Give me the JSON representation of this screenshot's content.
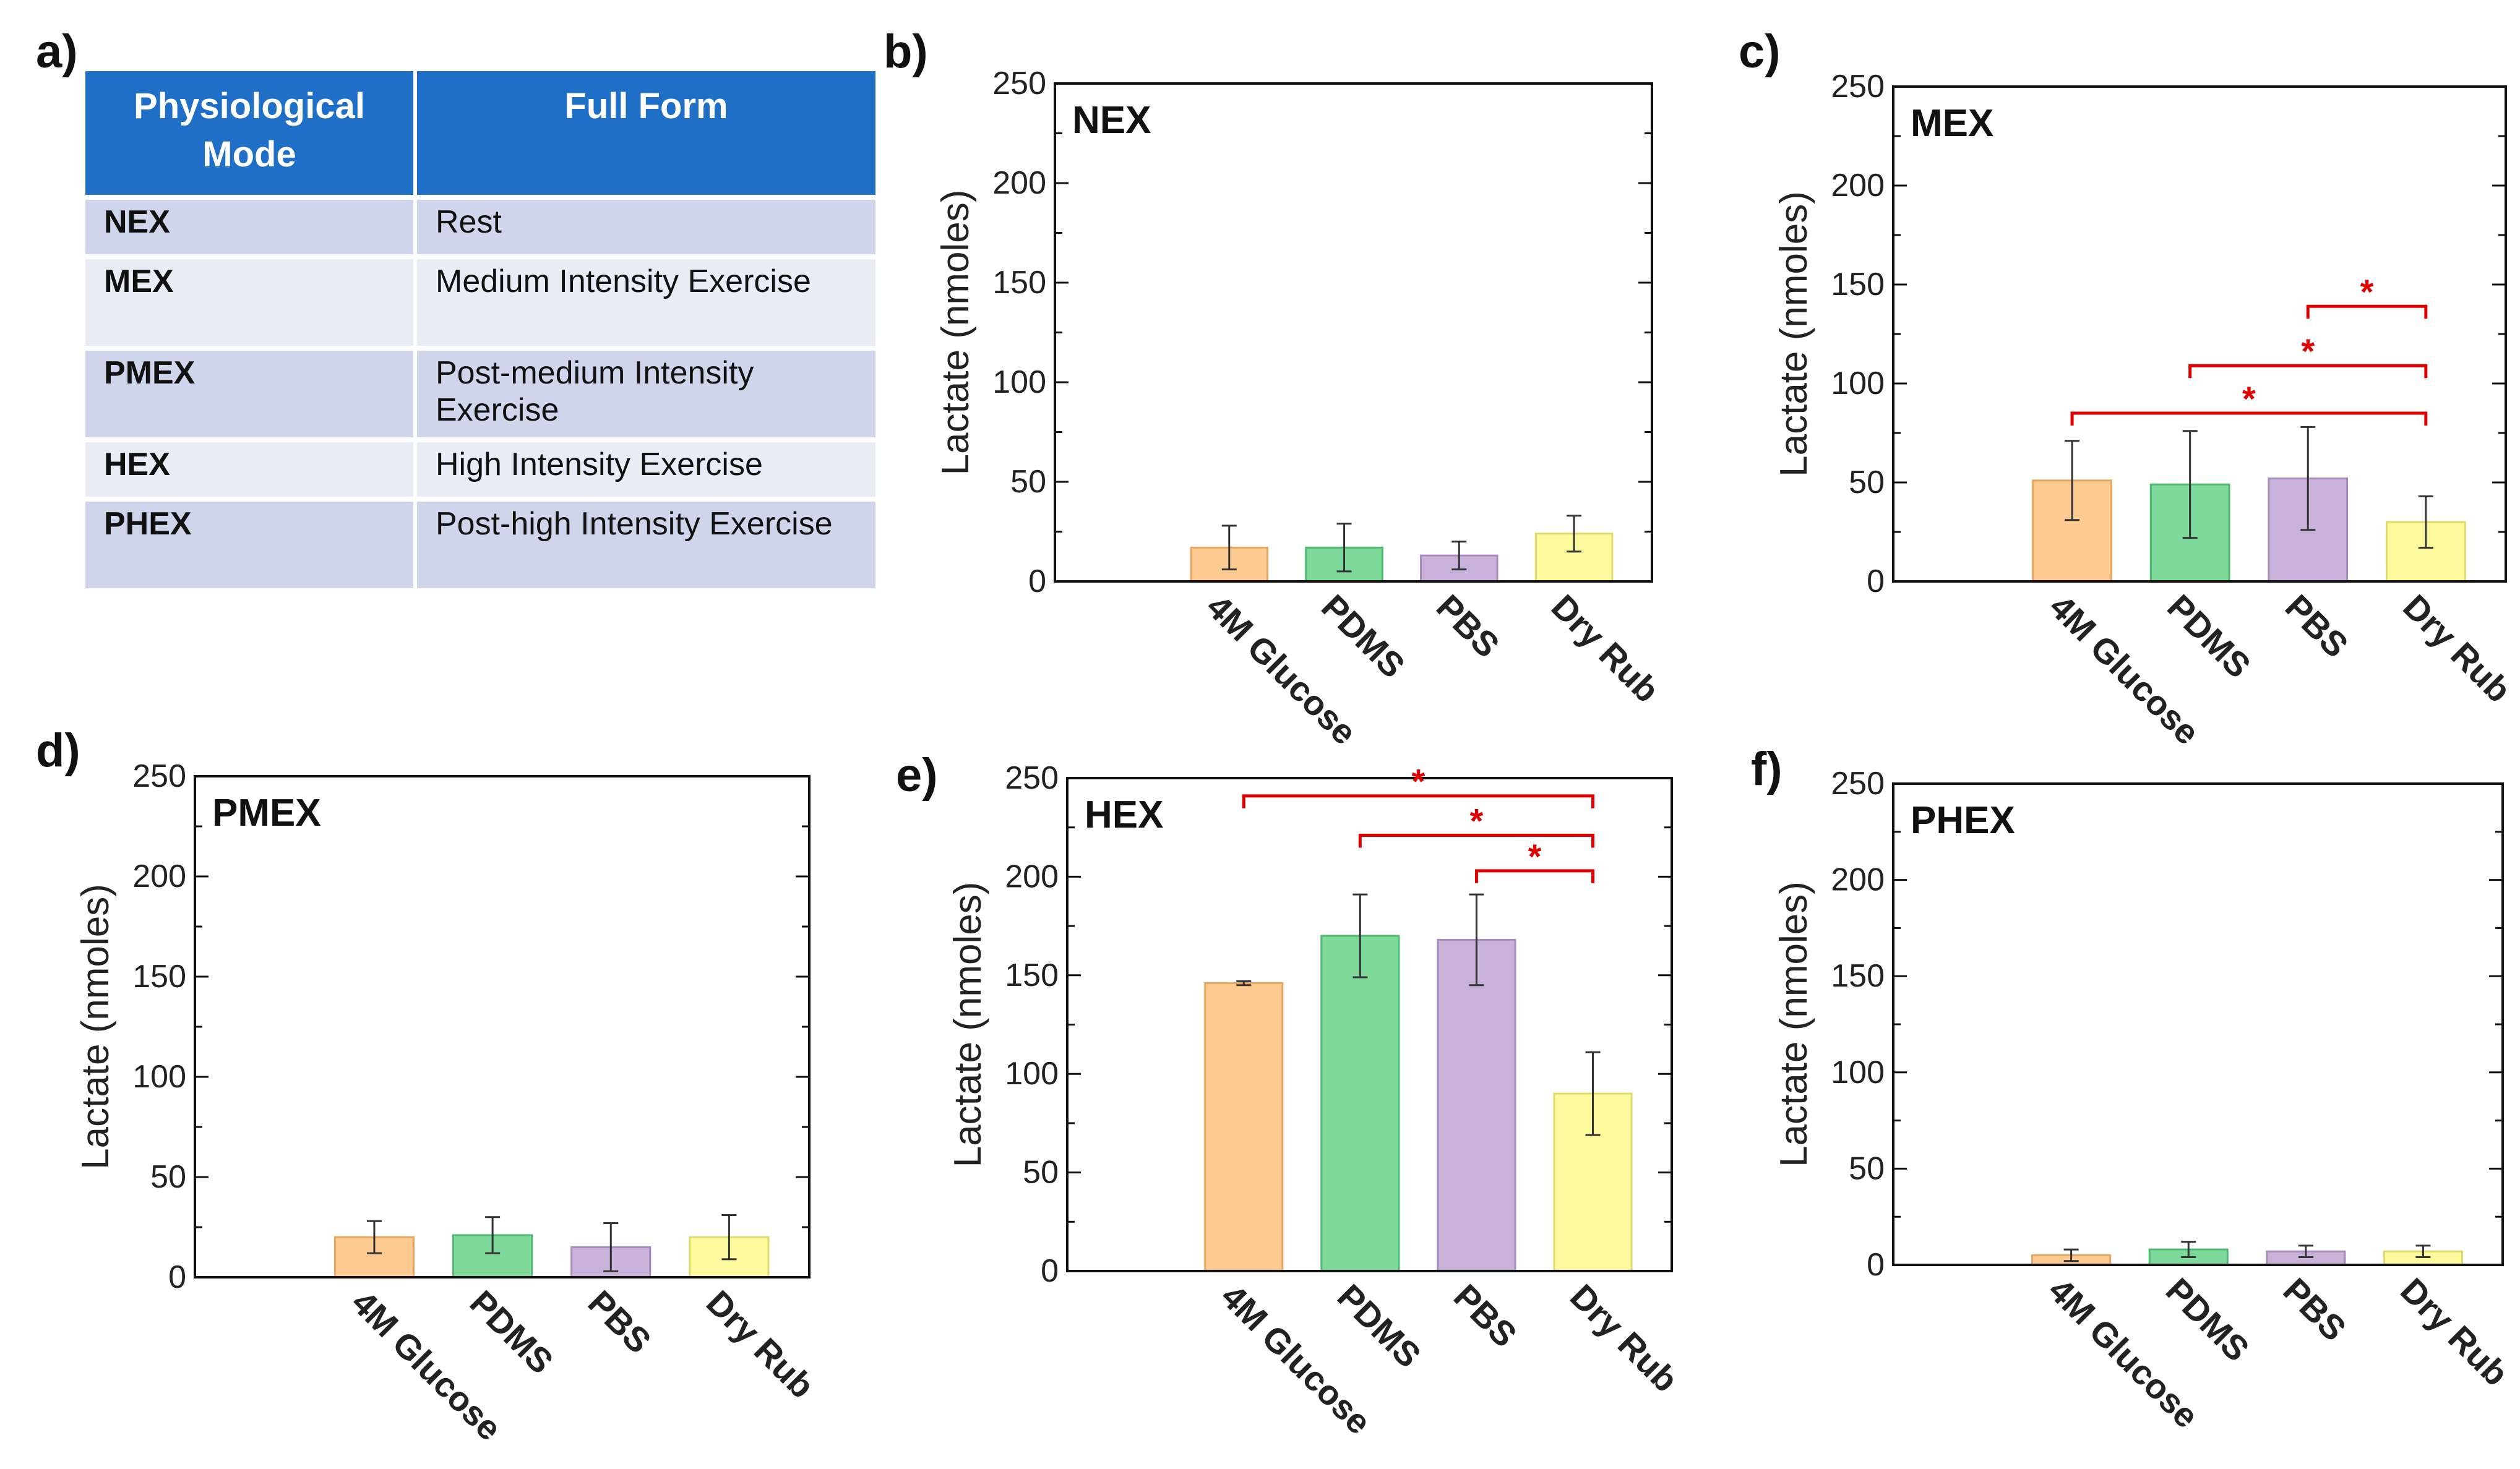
{
  "panel_labels": [
    "a)",
    "b)",
    "c)",
    "d)",
    "e)",
    "f)"
  ],
  "table": {
    "headers": [
      "Physiological Mode",
      "Full Form"
    ],
    "rows": [
      [
        "NEX",
        "Rest"
      ],
      [
        "MEX",
        "Medium Intensity Exercise"
      ],
      [
        "PMEX",
        "Post-medium Intensity Exercise"
      ],
      [
        "HEX",
        "High Intensity Exercise"
      ],
      [
        "PHEX",
        "Post-high Intensity Exercise"
      ]
    ]
  },
  "colors": {
    "fills": [
      "#fdcb92",
      "#7fd99a",
      "#c8b2d9",
      "#fdfa9e"
    ],
    "strokes": [
      "#e8a560",
      "#4fb86f",
      "#a68bbd",
      "#dedb6a"
    ],
    "significance": "#e00000",
    "header": "#1f6fc7"
  },
  "chart_data": [
    {
      "type": "bar",
      "panel": "b)",
      "title": "NEX",
      "categories": [
        "4M Glucose",
        "PDMS",
        "PBS",
        "Dry Rub"
      ],
      "values": [
        17,
        17,
        13,
        24
      ],
      "errors": [
        11,
        12,
        7,
        9
      ],
      "ylabel": "Lactate (nmoles)",
      "ylim": [
        0,
        250
      ],
      "yticks": [
        "0",
        "50",
        "100",
        "150",
        "200",
        "250"
      ],
      "significance": []
    },
    {
      "type": "bar",
      "panel": "c)",
      "title": "MEX",
      "categories": [
        "4M Glucose",
        "PDMS",
        "PBS",
        "Dry Rub"
      ],
      "values": [
        51,
        49,
        52,
        30
      ],
      "errors": [
        20,
        27,
        26,
        13
      ],
      "ylabel": "Lactate (nmoles)",
      "ylim": [
        0,
        250
      ],
      "yticks": [
        "0",
        "50",
        "100",
        "150",
        "200",
        "250"
      ],
      "significance": [
        {
          "from": 0,
          "to": 3,
          "y": 85,
          "label": "*"
        },
        {
          "from": 1,
          "to": 3,
          "y": 109,
          "label": "*"
        },
        {
          "from": 2,
          "to": 3,
          "y": 139,
          "label": "*"
        }
      ]
    },
    {
      "type": "bar",
      "panel": "d)",
      "title": "PMEX",
      "categories": [
        "4M Glucose",
        "PDMS",
        "PBS",
        "Dry Rub"
      ],
      "values": [
        20,
        21,
        15,
        20
      ],
      "errors": [
        8,
        9,
        12,
        11
      ],
      "ylabel": "Lactate (nmoles)",
      "ylim": [
        0,
        250
      ],
      "yticks": [
        "0",
        "50",
        "100",
        "150",
        "200",
        "250"
      ],
      "significance": []
    },
    {
      "type": "bar",
      "panel": "e)",
      "title": "HEX",
      "categories": [
        "4M Glucose",
        "PDMS",
        "PBS",
        "Dry Rub"
      ],
      "values": [
        146,
        170,
        168,
        90
      ],
      "errors": [
        1,
        21,
        23,
        21
      ],
      "ylabel": "Lactate (nmoles)",
      "ylim": [
        0,
        250
      ],
      "yticks": [
        "0",
        "50",
        "100",
        "150",
        "200",
        "250"
      ],
      "significance": [
        {
          "from": 0,
          "to": 3,
          "y": 241,
          "label": "*"
        },
        {
          "from": 1,
          "to": 3,
          "y": 221,
          "label": "*"
        },
        {
          "from": 2,
          "to": 3,
          "y": 203,
          "label": "*"
        }
      ]
    },
    {
      "type": "bar",
      "panel": "f)",
      "title": "PHEX",
      "categories": [
        "4M Glucose",
        "PDMS",
        "PBS",
        "Dry Rub"
      ],
      "values": [
        5,
        8,
        7,
        7
      ],
      "errors": [
        3,
        4,
        3,
        3
      ],
      "ylabel": "Lactate (nmoles)",
      "ylim": [
        0,
        250
      ],
      "yticks": [
        "0",
        "50",
        "100",
        "150",
        "200",
        "250"
      ],
      "significance": []
    }
  ]
}
